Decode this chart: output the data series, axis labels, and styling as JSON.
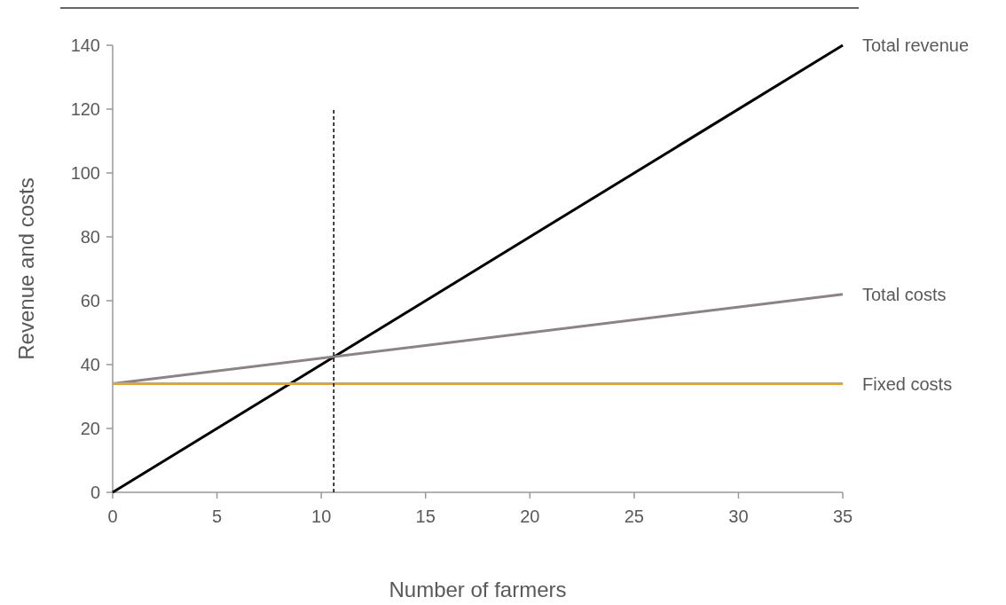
{
  "chart_data": {
    "type": "line",
    "xlabel": "Number of farmers",
    "ylabel": "Revenue and costs",
    "xlim": [
      0,
      35
    ],
    "xticks": [
      0,
      5,
      10,
      15,
      20,
      25,
      30,
      35
    ],
    "ylim": [
      0,
      140
    ],
    "yticks": [
      0,
      20,
      40,
      60,
      80,
      100,
      120,
      140
    ],
    "grid": false,
    "marker": "none",
    "series": [
      {
        "name": "Total revenue",
        "color": "#000000",
        "x": [
          0,
          35
        ],
        "values": [
          0,
          140
        ],
        "line_style": "solid"
      },
      {
        "name": "Total costs",
        "color": "#8c8482",
        "x": [
          0,
          35
        ],
        "values": [
          34,
          62
        ],
        "line_style": "solid"
      },
      {
        "name": "Fixed costs",
        "color": "#f0a30a",
        "x": [
          0,
          35
        ],
        "values": [
          34,
          34
        ],
        "line_style": "solid"
      },
      {
        "color": "#000000",
        "x": [
          10.6,
          10.6
        ],
        "values": [
          0,
          120
        ],
        "line_style": "dashed"
      }
    ]
  }
}
